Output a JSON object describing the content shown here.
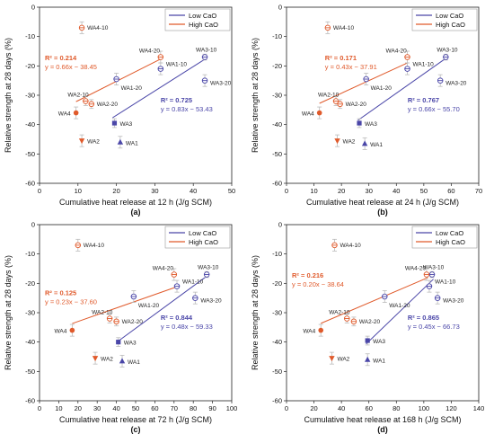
{
  "colors": {
    "low": "#4a46a8",
    "high": "#e05a2b",
    "error": "#bbbbbb",
    "axis": "#222222"
  },
  "legend": {
    "low_label": "Low CaO",
    "high_label": "High CaO",
    "placement": "top-right"
  },
  "chart_data": [
    {
      "type": "scatter",
      "panel": "(a)",
      "xlabel": "Cumulative heat release at 12 h (J/g SCM)",
      "ylabel": "Relative strength at 28 days (%)",
      "xlim": [
        0,
        50
      ],
      "ylim": [
        -60,
        0
      ],
      "xticks": [
        0,
        10,
        20,
        30,
        40,
        50
      ],
      "yticks": [
        0,
        -10,
        -20,
        -30,
        -40,
        -50,
        -60
      ],
      "series": [
        {
          "name": "Low CaO",
          "points": [
            {
              "label": "WA1",
              "x": 21,
              "y": -46,
              "err": 2
            },
            {
              "label": "WA3",
              "x": 19.5,
              "y": -39.5,
              "err": 1.5
            },
            {
              "label": "WA1-20",
              "x": 20,
              "y": -24.5,
              "err": 2
            },
            {
              "label": "WA1-10",
              "x": 31.5,
              "y": -21,
              "err": 2
            },
            {
              "label": "WA3-20",
              "x": 43,
              "y": -25,
              "err": 2
            },
            {
              "label": "WA3-10",
              "x": 43,
              "y": -17,
              "err": 1
            }
          ]
        },
        {
          "name": "High CaO",
          "points": [
            {
              "label": "WA4-10",
              "x": 11,
              "y": -7,
              "err": 2
            },
            {
              "label": "WA4",
              "x": 9.5,
              "y": -36,
              "err": 2
            },
            {
              "label": "WA2",
              "x": 11,
              "y": -45.5,
              "err": 2
            },
            {
              "label": "WA2-10",
              "x": 12,
              "y": -32,
              "err": 1.5
            },
            {
              "label": "WA2-20",
              "x": 13.5,
              "y": -33,
              "err": 1.5
            },
            {
              "label": "WA4-20",
              "x": 31.5,
              "y": -17,
              "err": 2
            }
          ]
        }
      ],
      "fits": [
        {
          "series": "Low CaO",
          "r2": "R² = 0.725",
          "eq": "y = 0.83x − 53.43",
          "x_range": [
            19,
            43
          ]
        },
        {
          "series": "High CaO",
          "r2": "R² = 0.214",
          "eq": "y = 0.66x − 38.45",
          "x_range": [
            9.5,
            31.5
          ]
        }
      ]
    },
    {
      "type": "scatter",
      "panel": "(b)",
      "xlabel": "Cumulative heat release at 24 h (J/g SCM)",
      "ylabel": "Relative strength at 28 days (%)",
      "xlim": [
        0,
        70
      ],
      "ylim": [
        -60,
        0
      ],
      "xticks": [
        0,
        10,
        20,
        30,
        40,
        50,
        60,
        70
      ],
      "yticks": [
        0,
        -10,
        -20,
        -30,
        -40,
        -50,
        -60
      ],
      "series": [
        {
          "name": "Low CaO",
          "points": [
            {
              "label": "WA1",
              "x": 28.5,
              "y": -46.5,
              "err": 2
            },
            {
              "label": "WA3",
              "x": 26.5,
              "y": -39.5,
              "err": 1.5
            },
            {
              "label": "WA1-20",
              "x": 29,
              "y": -24.5,
              "err": 2
            },
            {
              "label": "WA1-10",
              "x": 44,
              "y": -21,
              "err": 2
            },
            {
              "label": "WA3-20",
              "x": 56,
              "y": -25,
              "err": 2
            },
            {
              "label": "WA3-10",
              "x": 58,
              "y": -17,
              "err": 1
            }
          ]
        },
        {
          "name": "High CaO",
          "points": [
            {
              "label": "WA4-10",
              "x": 15,
              "y": -7,
              "err": 2
            },
            {
              "label": "WA4",
              "x": 12,
              "y": -36,
              "err": 2
            },
            {
              "label": "WA2",
              "x": 18.5,
              "y": -45.5,
              "err": 2
            },
            {
              "label": "WA2-10",
              "x": 18,
              "y": -32,
              "err": 1.5
            },
            {
              "label": "WA2-20",
              "x": 19.5,
              "y": -33,
              "err": 1.5
            },
            {
              "label": "WA4-20",
              "x": 44,
              "y": -17,
              "err": 2
            }
          ]
        }
      ],
      "fits": [
        {
          "series": "Low CaO",
          "r2": "R² = 0.767",
          "eq": "y = 0.66x − 55.70",
          "x_range": [
            26,
            58
          ]
        },
        {
          "series": "High CaO",
          "r2": "R² = 0.171",
          "eq": "y = 0.43x − 37.91",
          "x_range": [
            12,
            44
          ]
        }
      ]
    },
    {
      "type": "scatter",
      "panel": "(c)",
      "xlabel": "Cumulative heat release at 72 h (J/g SCM)",
      "ylabel": "Relative strength at 28 days (%)",
      "xlim": [
        0,
        100
      ],
      "ylim": [
        -60,
        0
      ],
      "xticks": [
        0,
        10,
        20,
        30,
        40,
        50,
        60,
        70,
        80,
        90,
        100
      ],
      "yticks": [
        0,
        -10,
        -20,
        -30,
        -40,
        -50,
        -60
      ],
      "series": [
        {
          "name": "Low CaO",
          "points": [
            {
              "label": "WA1",
              "x": 43,
              "y": -46.5,
              "err": 2
            },
            {
              "label": "WA3",
              "x": 41,
              "y": -40,
              "err": 1.5
            },
            {
              "label": "WA1-20",
              "x": 49,
              "y": -24.5,
              "err": 2
            },
            {
              "label": "WA1-10",
              "x": 71.5,
              "y": -21,
              "err": 2
            },
            {
              "label": "WA3-20",
              "x": 81,
              "y": -25,
              "err": 2
            },
            {
              "label": "WA3-10",
              "x": 87,
              "y": -17,
              "err": 1
            }
          ]
        },
        {
          "name": "High CaO",
          "points": [
            {
              "label": "WA4-10",
              "x": 20,
              "y": -7,
              "err": 2
            },
            {
              "label": "WA4",
              "x": 17,
              "y": -36,
              "err": 2
            },
            {
              "label": "WA2",
              "x": 29,
              "y": -45.5,
              "err": 2
            },
            {
              "label": "WA2-10",
              "x": 36.5,
              "y": -32,
              "err": 1.5
            },
            {
              "label": "WA2-20",
              "x": 40,
              "y": -33,
              "err": 1.5
            },
            {
              "label": "WA4-20",
              "x": 70,
              "y": -17,
              "err": 2
            }
          ]
        }
      ],
      "fits": [
        {
          "series": "Low CaO",
          "r2": "R² = 0.844",
          "eq": "y = 0.48x − 59.33",
          "x_range": [
            40,
            88
          ]
        },
        {
          "series": "High CaO",
          "r2": "R² = 0.125",
          "eq": "y = 0.23x − 37.60",
          "x_range": [
            17,
            71
          ]
        }
      ]
    },
    {
      "type": "scatter",
      "panel": "(d)",
      "xlabel": "Cumulative heat release at 168 h (J/g SCM)",
      "ylabel": "Relative strength at 28 days (%)",
      "xlim": [
        0,
        140
      ],
      "ylim": [
        -60,
        0
      ],
      "xticks": [
        0,
        20,
        40,
        60,
        80,
        100,
        120,
        140
      ],
      "yticks": [
        0,
        -10,
        -20,
        -30,
        -40,
        -50,
        -60
      ],
      "series": [
        {
          "name": "Low CaO",
          "points": [
            {
              "label": "WA1",
              "x": 59,
              "y": -46,
              "err": 2
            },
            {
              "label": "WA3",
              "x": 59,
              "y": -39.5,
              "err": 1.5
            },
            {
              "label": "WA1-20",
              "x": 71.5,
              "y": -24.5,
              "err": 2
            },
            {
              "label": "WA1-10",
              "x": 104,
              "y": -21,
              "err": 2
            },
            {
              "label": "WA3-20",
              "x": 110,
              "y": -25,
              "err": 2
            },
            {
              "label": "WA3-10",
              "x": 106,
              "y": -17,
              "err": 1
            }
          ]
        },
        {
          "name": "High CaO",
          "points": [
            {
              "label": "WA4-10",
              "x": 35,
              "y": -7,
              "err": 2
            },
            {
              "label": "WA4",
              "x": 25,
              "y": -36,
              "err": 2
            },
            {
              "label": "WA2",
              "x": 33,
              "y": -45.5,
              "err": 2
            },
            {
              "label": "WA2-10",
              "x": 44,
              "y": -32,
              "err": 1.5
            },
            {
              "label": "WA2-20",
              "x": 49,
              "y": -33,
              "err": 1.5
            },
            {
              "label": "WA4-20",
              "x": 102,
              "y": -17,
              "err": 2
            }
          ]
        }
      ],
      "fits": [
        {
          "series": "Low CaO",
          "r2": "R² = 0.865",
          "eq": "y = 0.45x − 66.73",
          "x_range": [
            58,
            107
          ]
        },
        {
          "series": "High CaO",
          "r2": "R² = 0.216",
          "eq": "y = 0.20x − 38.64",
          "x_range": [
            25,
            103
          ]
        }
      ]
    }
  ]
}
